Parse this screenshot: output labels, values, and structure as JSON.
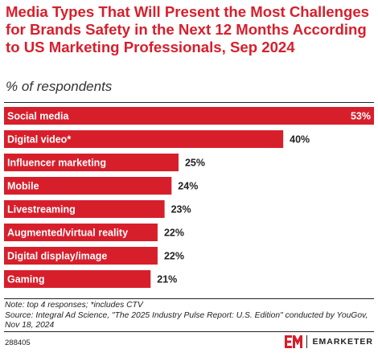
{
  "chart_data": {
    "type": "bar",
    "orientation": "horizontal",
    "title": "Media Types That Will Present the Most Challenges for Brands Safety in the Next 12 Months According to US Marketing Professionals, Sep 2024",
    "subtitle": "% of respondents",
    "categories": [
      "Social media",
      "Digital video*",
      "Influencer marketing",
      "Mobile",
      "Livestreaming",
      "Augmented/virtual reality",
      "Digital display/image",
      "Gaming"
    ],
    "values": [
      53,
      40,
      25,
      24,
      23,
      22,
      22,
      21
    ],
    "value_labels": [
      "53%",
      "40%",
      "25%",
      "24%",
      "23%",
      "22%",
      "22%",
      "21%"
    ],
    "xlim": [
      0,
      53
    ],
    "bar_color": "#d71f2c",
    "grid": false
  },
  "footer": {
    "note": "Note: top 4 responses; *includes CTV",
    "source": "Source: Integral Ad Science, \"The 2025 Industry Pulse Report: U.S. Edition\" conducted by YouGov, Nov 18, 2024",
    "chart_id": "288405"
  },
  "brand": {
    "logo_icon": "em-logo-icon",
    "name": "EMARKETER",
    "accent_color": "#d71f2c"
  }
}
